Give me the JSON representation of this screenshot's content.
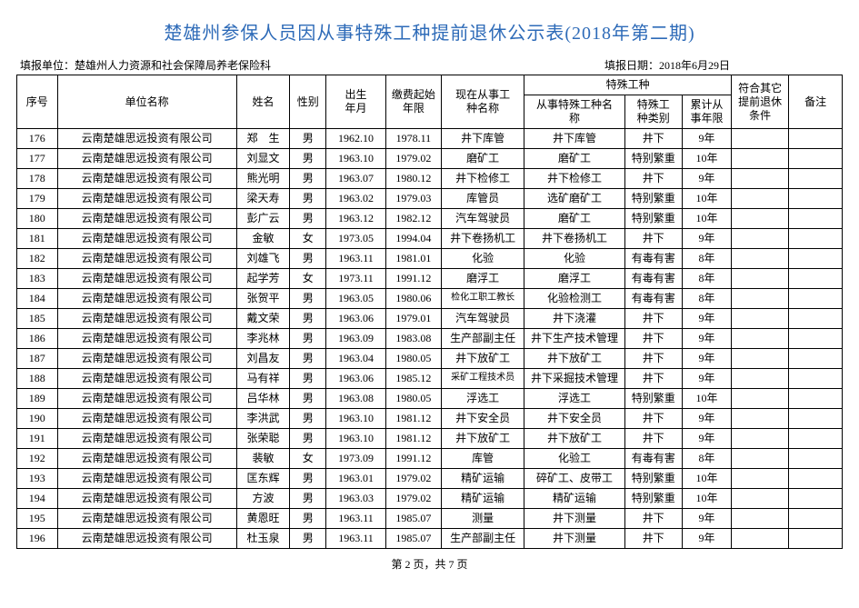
{
  "title": "楚雄州参保人员因从事特殊工种提前退休公示表(2018年第二期)",
  "meta": {
    "fill_unit_label": "填报单位：",
    "fill_unit_value": "楚雄州人力资源和社会保障局养老保险科",
    "fill_date_label": "填报日期：",
    "fill_date_value": "2018年6月29日"
  },
  "header": {
    "idx": "序号",
    "unit": "单位名称",
    "name": "姓名",
    "sex": "性别",
    "birth": "出生\n年月",
    "pay": "缴费起始\n年限",
    "job": "现在从事工\n种名称",
    "special_group": "特殊工种",
    "sp1": "从事特殊工种名\n称",
    "sp2": "特殊工\n种类别",
    "sp3": "累计从\n事年限",
    "cond": "符合其它\n提前退休\n条件",
    "note": "备注"
  },
  "rows": [
    {
      "idx": "176",
      "unit": "云南楚雄思远投资有限公司",
      "name": "郑　生",
      "sex": "男",
      "birth": "1962.10",
      "pay": "1978.11",
      "job": "井下库管",
      "sp1": "井下库管",
      "sp2": "井下",
      "sp3": "9年",
      "cond": "",
      "note": ""
    },
    {
      "idx": "177",
      "unit": "云南楚雄思远投资有限公司",
      "name": "刘显文",
      "sex": "男",
      "birth": "1963.10",
      "pay": "1979.02",
      "job": "磨矿工",
      "sp1": "磨矿工",
      "sp2": "特别繁重",
      "sp3": "10年",
      "cond": "",
      "note": ""
    },
    {
      "idx": "178",
      "unit": "云南楚雄思远投资有限公司",
      "name": "熊光明",
      "sex": "男",
      "birth": "1963.07",
      "pay": "1980.12",
      "job": "井下检修工",
      "sp1": "井下检修工",
      "sp2": "井下",
      "sp3": "9年",
      "cond": "",
      "note": ""
    },
    {
      "idx": "179",
      "unit": "云南楚雄思远投资有限公司",
      "name": "梁天寿",
      "sex": "男",
      "birth": "1963.02",
      "pay": "1979.03",
      "job": "库管员",
      "sp1": "选矿磨矿工",
      "sp2": "特别繁重",
      "sp3": "10年",
      "cond": "",
      "note": ""
    },
    {
      "idx": "180",
      "unit": "云南楚雄思远投资有限公司",
      "name": "彭广云",
      "sex": "男",
      "birth": "1963.12",
      "pay": "1982.12",
      "job": "汽车驾驶员",
      "sp1": "磨矿工",
      "sp2": "特别繁重",
      "sp3": "10年",
      "cond": "",
      "note": ""
    },
    {
      "idx": "181",
      "unit": "云南楚雄思远投资有限公司",
      "name": "金敏",
      "sex": "女",
      "birth": "1973.05",
      "pay": "1994.04",
      "job": "井下卷扬机工",
      "sp1": "井下卷扬机工",
      "sp2": "井下",
      "sp3": "9年",
      "cond": "",
      "note": ""
    },
    {
      "idx": "182",
      "unit": "云南楚雄思远投资有限公司",
      "name": "刘雄飞",
      "sex": "男",
      "birth": "1963.11",
      "pay": "1981.01",
      "job": "化验",
      "sp1": "化验",
      "sp2": "有毒有害",
      "sp3": "8年",
      "cond": "",
      "note": ""
    },
    {
      "idx": "183",
      "unit": "云南楚雄思远投资有限公司",
      "name": "起学芳",
      "sex": "女",
      "birth": "1973.11",
      "pay": "1991.12",
      "job": "磨浮工",
      "sp1": "磨浮工",
      "sp2": "有毒有害",
      "sp3": "8年",
      "cond": "",
      "note": ""
    },
    {
      "idx": "184",
      "unit": "云南楚雄思远投资有限公司",
      "name": "张贺平",
      "sex": "男",
      "birth": "1963.05",
      "pay": "1980.06",
      "job": "检化工职工教长",
      "job_small": true,
      "sp1": "化验检测工",
      "sp2": "有毒有害",
      "sp3": "8年",
      "cond": "",
      "note": ""
    },
    {
      "idx": "185",
      "unit": "云南楚雄思远投资有限公司",
      "name": "戴文荣",
      "sex": "男",
      "birth": "1963.06",
      "pay": "1979.01",
      "job": "汽车驾驶员",
      "sp1": "井下浇灌",
      "sp2": "井下",
      "sp3": "9年",
      "cond": "",
      "note": ""
    },
    {
      "idx": "186",
      "unit": "云南楚雄思远投资有限公司",
      "name": "李兆林",
      "sex": "男",
      "birth": "1963.09",
      "pay": "1983.08",
      "job": "生产部副主任",
      "sp1": "井下生产技术管理",
      "sp2": "井下",
      "sp3": "9年",
      "cond": "",
      "note": ""
    },
    {
      "idx": "187",
      "unit": "云南楚雄思远投资有限公司",
      "name": "刘昌友",
      "sex": "男",
      "birth": "1963.04",
      "pay": "1980.05",
      "job": "井下放矿工",
      "sp1": "井下放矿工",
      "sp2": "井下",
      "sp3": "9年",
      "cond": "",
      "note": ""
    },
    {
      "idx": "188",
      "unit": "云南楚雄思远投资有限公司",
      "name": "马有祥",
      "sex": "男",
      "birth": "1963.06",
      "pay": "1985.12",
      "job": "采矿工程技术员",
      "job_small": true,
      "sp1": "井下采掘技术管理",
      "sp2": "井下",
      "sp3": "9年",
      "cond": "",
      "note": ""
    },
    {
      "idx": "189",
      "unit": "云南楚雄思远投资有限公司",
      "name": "吕华林",
      "sex": "男",
      "birth": "1963.08",
      "pay": "1980.05",
      "job": "浮选工",
      "sp1": "浮选工",
      "sp2": "特别繁重",
      "sp3": "10年",
      "cond": "",
      "note": ""
    },
    {
      "idx": "190",
      "unit": "云南楚雄思远投资有限公司",
      "name": "李洪武",
      "sex": "男",
      "birth": "1963.10",
      "pay": "1981.12",
      "job": "井下安全员",
      "sp1": "井下安全员",
      "sp2": "井下",
      "sp3": "9年",
      "cond": "",
      "note": ""
    },
    {
      "idx": "191",
      "unit": "云南楚雄思远投资有限公司",
      "name": "张荣聪",
      "sex": "男",
      "birth": "1963.10",
      "pay": "1981.12",
      "job": "井下放矿工",
      "sp1": "井下放矿工",
      "sp2": "井下",
      "sp3": "9年",
      "cond": "",
      "note": ""
    },
    {
      "idx": "192",
      "unit": "云南楚雄思远投资有限公司",
      "name": "裴敏",
      "sex": "女",
      "birth": "1973.09",
      "pay": "1991.12",
      "job": "库管",
      "sp1": "化验工",
      "sp2": "有毒有害",
      "sp3": "8年",
      "cond": "",
      "note": ""
    },
    {
      "idx": "193",
      "unit": "云南楚雄思远投资有限公司",
      "name": "匡东辉",
      "sex": "男",
      "birth": "1963.01",
      "pay": "1979.02",
      "job": "精矿运输",
      "sp1": "碎矿工、皮带工",
      "sp2": "特别繁重",
      "sp3": "10年",
      "cond": "",
      "note": ""
    },
    {
      "idx": "194",
      "unit": "云南楚雄思远投资有限公司",
      "name": "方波",
      "sex": "男",
      "birth": "1963.03",
      "pay": "1979.02",
      "job": "精矿运输",
      "sp1": "精矿运输",
      "sp2": "特别繁重",
      "sp3": "10年",
      "cond": "",
      "note": ""
    },
    {
      "idx": "195",
      "unit": "云南楚雄思远投资有限公司",
      "name": "黄恩旺",
      "sex": "男",
      "birth": "1963.11",
      "pay": "1985.07",
      "job": "测量",
      "sp1": "井下测量",
      "sp2": "井下",
      "sp3": "9年",
      "cond": "",
      "note": ""
    },
    {
      "idx": "196",
      "unit": "云南楚雄思远投资有限公司",
      "name": "杜玉泉",
      "sex": "男",
      "birth": "1963.11",
      "pay": "1985.07",
      "job": "生产部副主任",
      "sp1": "井下测量",
      "sp2": "井下",
      "sp3": "9年",
      "cond": "",
      "note": ""
    }
  ],
  "footer": "第 2 页，共 7 页"
}
